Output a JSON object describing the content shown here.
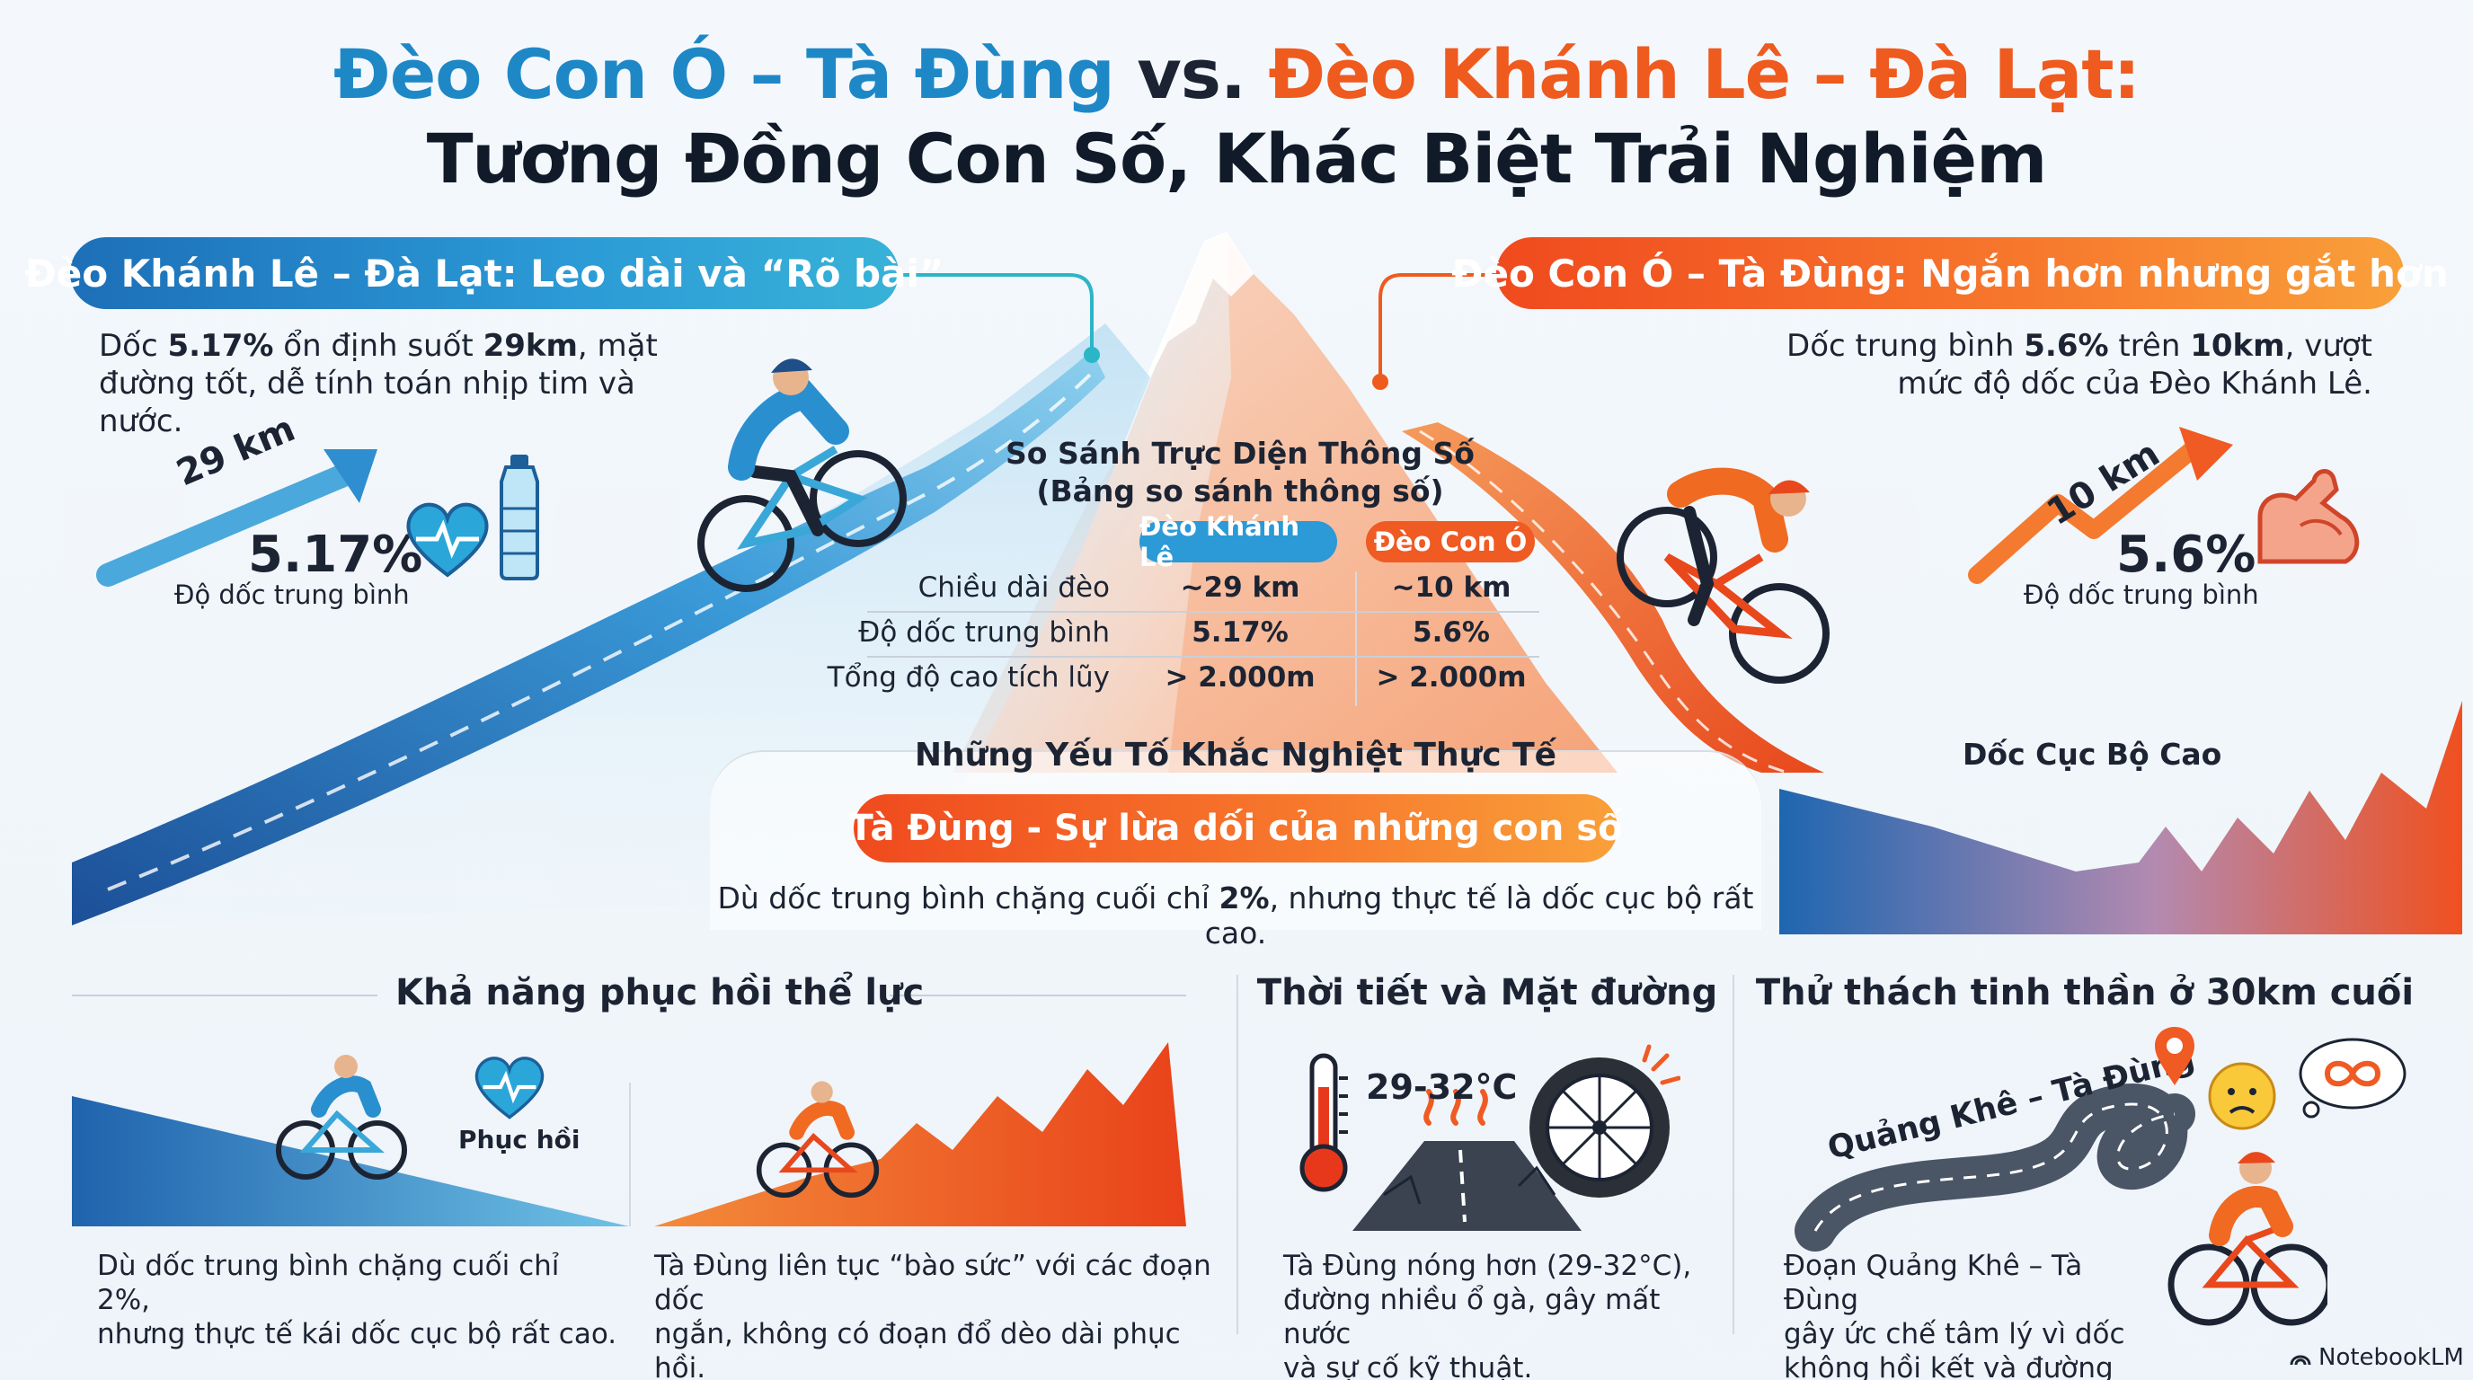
{
  "title": {
    "part_blue": "Đèo Con Ó – Tà Đùng",
    "part_vs": " vs. ",
    "part_orange": "Đèo Khánh Lê – Đà Lạt:",
    "line2": "Tương Đồng Con Số, Khác Biệt Trải Nghiệm"
  },
  "left": {
    "pill": "Đèo Khánh Lê – Đà Lạt: Leo dài và “Rõ bài”",
    "desc_a": "Dốc ",
    "desc_b": "5.17%",
    "desc_c": " ổn định suốt ",
    "desc_d": "29km",
    "desc_e": ", mặt",
    "desc_line2": "đường tốt, dễ tính toán nhịp tim và nước.",
    "arrow_label": "29 km",
    "big_value": "5.17%",
    "big_caption": "Độ dốc trung bình"
  },
  "right": {
    "pill": "Đèo Con Ó – Tà Đùng: Ngắn hơn nhưng gắt hơn",
    "desc_a": "Dốc trung bình ",
    "desc_b": "5.6%",
    "desc_c": " trên ",
    "desc_d": "10km",
    "desc_e": ", vượt",
    "desc_line2": "mức độ dốc của Đèo Khánh Lê.",
    "arrow_label": "10 km",
    "big_value": "5.6%",
    "big_caption": "Độ dốc trung bình"
  },
  "table": {
    "title_l1": "So Sánh Trực Diện Thông Số",
    "title_l2": "(Bảng so sánh thông số)",
    "col1": "Đèo Khánh Lê",
    "col2": "Đèo Con Ó",
    "rows": [
      {
        "label": "Chiều dài đèo",
        "v1": "~29 km",
        "v2": "~10 km"
      },
      {
        "label": "Độ dốc trung bình",
        "v1": "5.17%",
        "v2": "5.6%"
      },
      {
        "label": "Tổng độ cao tích lũy",
        "v1": "> 2.000m",
        "v2": "> 2.000m"
      }
    ]
  },
  "factors": {
    "heading": "Những Yếu Tố Khắc Nghiệt Thực Tế",
    "pill": "Tà Đùng - Sự lừa dối của những con số",
    "desc_a": "Dù dốc trung bình chặng cuối chỉ ",
    "desc_b": "2%",
    "desc_c": ", nhưng thực tế là dốc cục bộ rất cao.",
    "chart_label": "Dốc Cục Bộ Cao"
  },
  "bottom": {
    "recovery": {
      "heading": "Khả năng phục hồi thể lực",
      "badge": "Phục hồi",
      "left_text_l1": "Dù dốc trung bình chặng cuối chỉ 2%,",
      "left_text_l2": "nhưng thực tế kái dốc cục bộ rất cao.",
      "right_text_l1": "Tà Đùng liên tục “bào sức” với các đoạn dốc",
      "right_text_l2": "ngắn, không có đoạn đổ dèo dài phục hồi."
    },
    "weather": {
      "heading": "Thời tiết và Mặt đường",
      "temp": "29-32°C",
      "text_l1": "Tà Đùng nóng hơn (29-32°C),",
      "text_l2": "đường nhiều ổ gà, gây mất nước",
      "text_l3": "và sự cố kỹ thuật."
    },
    "mental": {
      "heading": "Thử thách tinh thần ở 30km cuối",
      "road_label": "Quảng Khê – Tà Đùng",
      "text_l1": "Đoạn Quảng Khê – Tà Đùng",
      "text_l2": "gây ức chế tâm lý vì dốc",
      "text_l3": "không hồi kết và đường xấu."
    }
  },
  "brand": "NotebookLM",
  "colors": {
    "blue": "#2b9ad6",
    "orange": "#f05a23",
    "dark": "#1c2433"
  }
}
